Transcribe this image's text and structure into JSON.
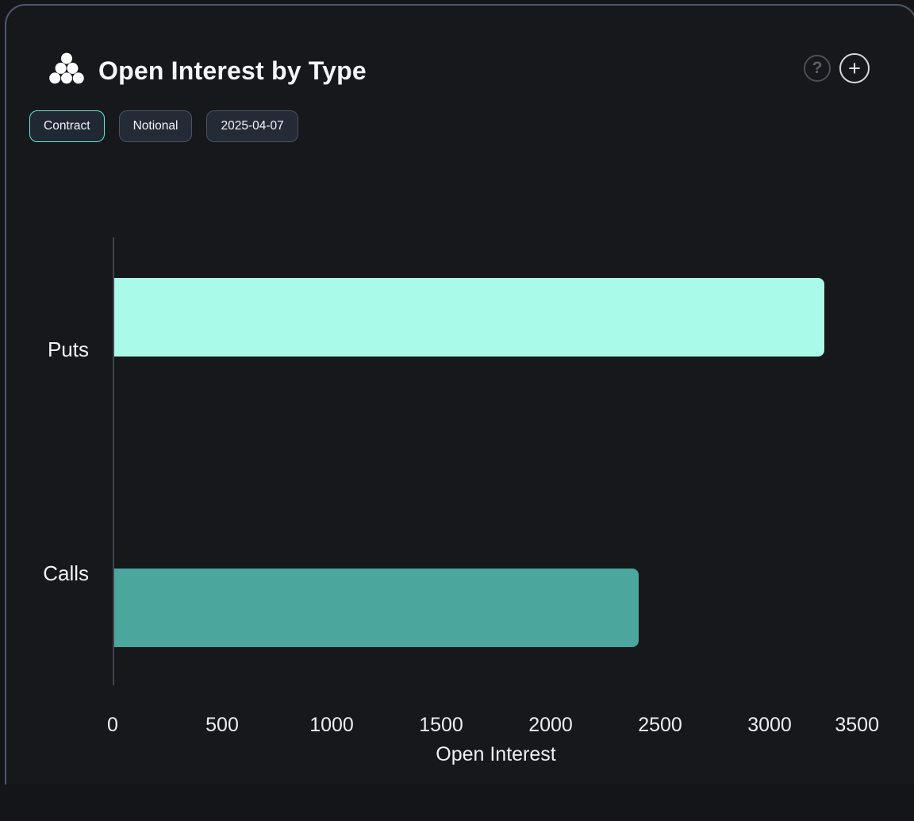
{
  "header": {
    "title": "Open Interest by Type",
    "help_glyph": "?",
    "add_glyph": "+"
  },
  "toolbar": {
    "buttons": [
      {
        "label": "Contract",
        "active": true
      },
      {
        "label": "Notional",
        "active": false
      },
      {
        "label": "2025-04-07",
        "active": false
      }
    ]
  },
  "colors": {
    "card_background": "#16181c",
    "card_border": "#4e586a",
    "active_chip_border": "#62e9d2",
    "puts_bar": "#aafae9",
    "calls_bar": "#4ba69d",
    "axis_line": "#40454c",
    "text": "#f1f3f5"
  },
  "chart_data": {
    "type": "bar",
    "orientation": "horizontal",
    "title": "Open Interest by Type",
    "categories": [
      "Puts",
      "Calls"
    ],
    "values": [
      3250,
      2400
    ],
    "series_colors": [
      "#aafae9",
      "#4ba69d"
    ],
    "xlabel": "Open Interest",
    "ylabel": "",
    "xlim": [
      0,
      3500
    ],
    "xticks": [
      0,
      500,
      1000,
      1500,
      2000,
      2500,
      3000,
      3500
    ],
    "grid": false,
    "legend": false
  }
}
